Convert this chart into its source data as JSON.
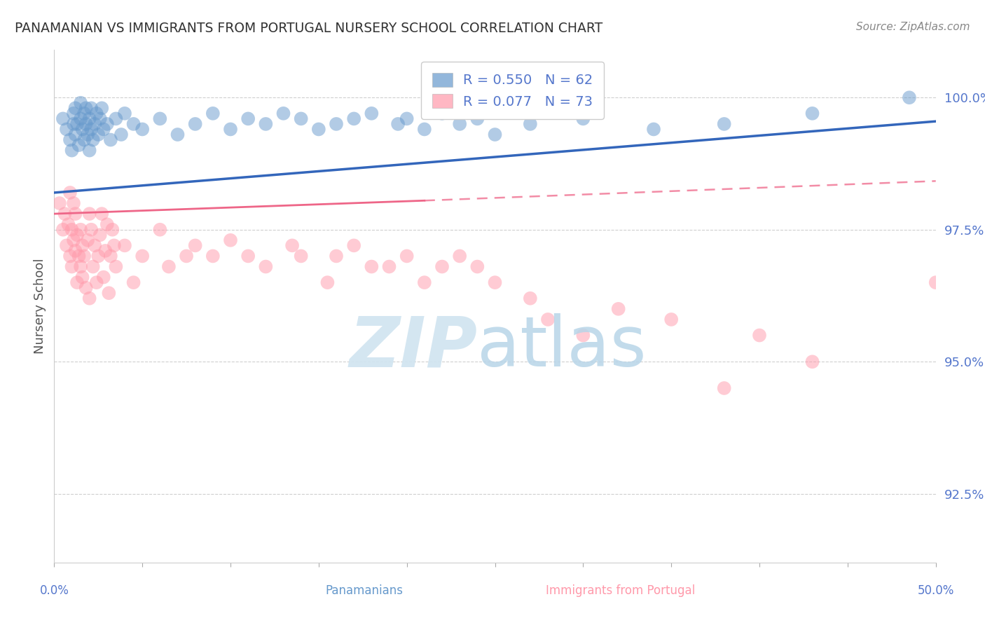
{
  "title": "PANAMANIAN VS IMMIGRANTS FROM PORTUGAL NURSERY SCHOOL CORRELATION CHART",
  "source": "Source: ZipAtlas.com",
  "ylabel": "Nursery School",
  "yticks": [
    92.5,
    95.0,
    97.5,
    100.0
  ],
  "ytick_labels": [
    "92.5%",
    "95.0%",
    "97.5%",
    "100.0%"
  ],
  "xmin": 0.0,
  "xmax": 50.0,
  "ymin": 91.2,
  "ymax": 100.9,
  "legend_r1": "R = 0.550",
  "legend_n1": "N = 62",
  "legend_r2": "R = 0.077",
  "legend_n2": "N = 73",
  "blue_color": "#6699CC",
  "pink_color": "#FF99AA",
  "blue_line_color": "#3366BB",
  "pink_line_color": "#EE6688",
  "axis_label_color": "#5577CC",
  "blue_trend_x0": 0.0,
  "blue_trend_x1": 50.0,
  "blue_trend_y0": 98.2,
  "blue_trend_y1": 99.55,
  "pink_solid_x0": 0.0,
  "pink_solid_x1": 21.0,
  "pink_solid_y0": 97.8,
  "pink_solid_y1": 98.05,
  "pink_dashed_x0": 21.0,
  "pink_dashed_x1": 50.0,
  "pink_dashed_y0": 98.05,
  "pink_dashed_y1": 98.42,
  "blue_scatter_x": [
    0.5,
    0.7,
    0.9,
    1.0,
    1.1,
    1.1,
    1.2,
    1.2,
    1.3,
    1.4,
    1.5,
    1.5,
    1.6,
    1.7,
    1.7,
    1.8,
    1.8,
    1.9,
    2.0,
    2.0,
    2.1,
    2.1,
    2.2,
    2.3,
    2.4,
    2.5,
    2.6,
    2.7,
    2.8,
    3.0,
    3.2,
    3.5,
    3.8,
    4.0,
    4.5,
    5.0,
    6.0,
    7.0,
    8.0,
    9.0,
    10.0,
    11.0,
    12.0,
    13.0,
    14.0,
    15.0,
    16.0,
    17.0,
    18.0,
    19.5,
    20.0,
    21.0,
    22.0,
    23.0,
    24.0,
    25.0,
    27.0,
    30.0,
    34.0,
    38.0,
    43.0,
    48.5
  ],
  "blue_scatter_y": [
    99.6,
    99.4,
    99.2,
    99.0,
    99.5,
    99.7,
    99.3,
    99.8,
    99.5,
    99.1,
    99.6,
    99.9,
    99.4,
    99.2,
    99.7,
    99.5,
    99.8,
    99.3,
    99.6,
    99.0,
    99.4,
    99.8,
    99.2,
    99.5,
    99.7,
    99.3,
    99.6,
    99.8,
    99.4,
    99.5,
    99.2,
    99.6,
    99.3,
    99.7,
    99.5,
    99.4,
    99.6,
    99.3,
    99.5,
    99.7,
    99.4,
    99.6,
    99.5,
    99.7,
    99.6,
    99.4,
    99.5,
    99.6,
    99.7,
    99.5,
    99.6,
    99.4,
    99.7,
    99.5,
    99.6,
    99.3,
    99.5,
    99.6,
    99.4,
    99.5,
    99.7,
    100.0
  ],
  "pink_scatter_x": [
    0.3,
    0.5,
    0.6,
    0.7,
    0.8,
    0.9,
    0.9,
    1.0,
    1.0,
    1.1,
    1.1,
    1.2,
    1.2,
    1.3,
    1.3,
    1.4,
    1.5,
    1.5,
    1.6,
    1.6,
    1.7,
    1.8,
    1.9,
    2.0,
    2.0,
    2.1,
    2.2,
    2.3,
    2.4,
    2.5,
    2.6,
    2.7,
    2.8,
    2.9,
    3.0,
    3.1,
    3.2,
    3.3,
    3.4,
    3.5,
    4.0,
    4.5,
    5.0,
    6.0,
    6.5,
    7.5,
    8.0,
    9.0,
    10.0,
    11.0,
    12.0,
    13.5,
    14.0,
    15.5,
    16.0,
    17.0,
    18.0,
    19.0,
    20.0,
    21.0,
    22.0,
    23.0,
    24.0,
    25.0,
    27.0,
    28.0,
    30.0,
    32.0,
    35.0,
    38.0,
    40.0,
    43.0,
    50.0
  ],
  "pink_scatter_y": [
    98.0,
    97.5,
    97.8,
    97.2,
    97.6,
    97.0,
    98.2,
    97.5,
    96.8,
    97.3,
    98.0,
    97.1,
    97.8,
    96.5,
    97.4,
    97.0,
    96.8,
    97.5,
    97.2,
    96.6,
    97.0,
    96.4,
    97.3,
    97.8,
    96.2,
    97.5,
    96.8,
    97.2,
    96.5,
    97.0,
    97.4,
    97.8,
    96.6,
    97.1,
    97.6,
    96.3,
    97.0,
    97.5,
    97.2,
    96.8,
    97.2,
    96.5,
    97.0,
    97.5,
    96.8,
    97.0,
    97.2,
    97.0,
    97.3,
    97.0,
    96.8,
    97.2,
    97.0,
    96.5,
    97.0,
    97.2,
    96.8,
    96.8,
    97.0,
    96.5,
    96.8,
    97.0,
    96.8,
    96.5,
    96.2,
    95.8,
    95.5,
    96.0,
    95.8,
    94.5,
    95.5,
    95.0,
    96.5
  ]
}
